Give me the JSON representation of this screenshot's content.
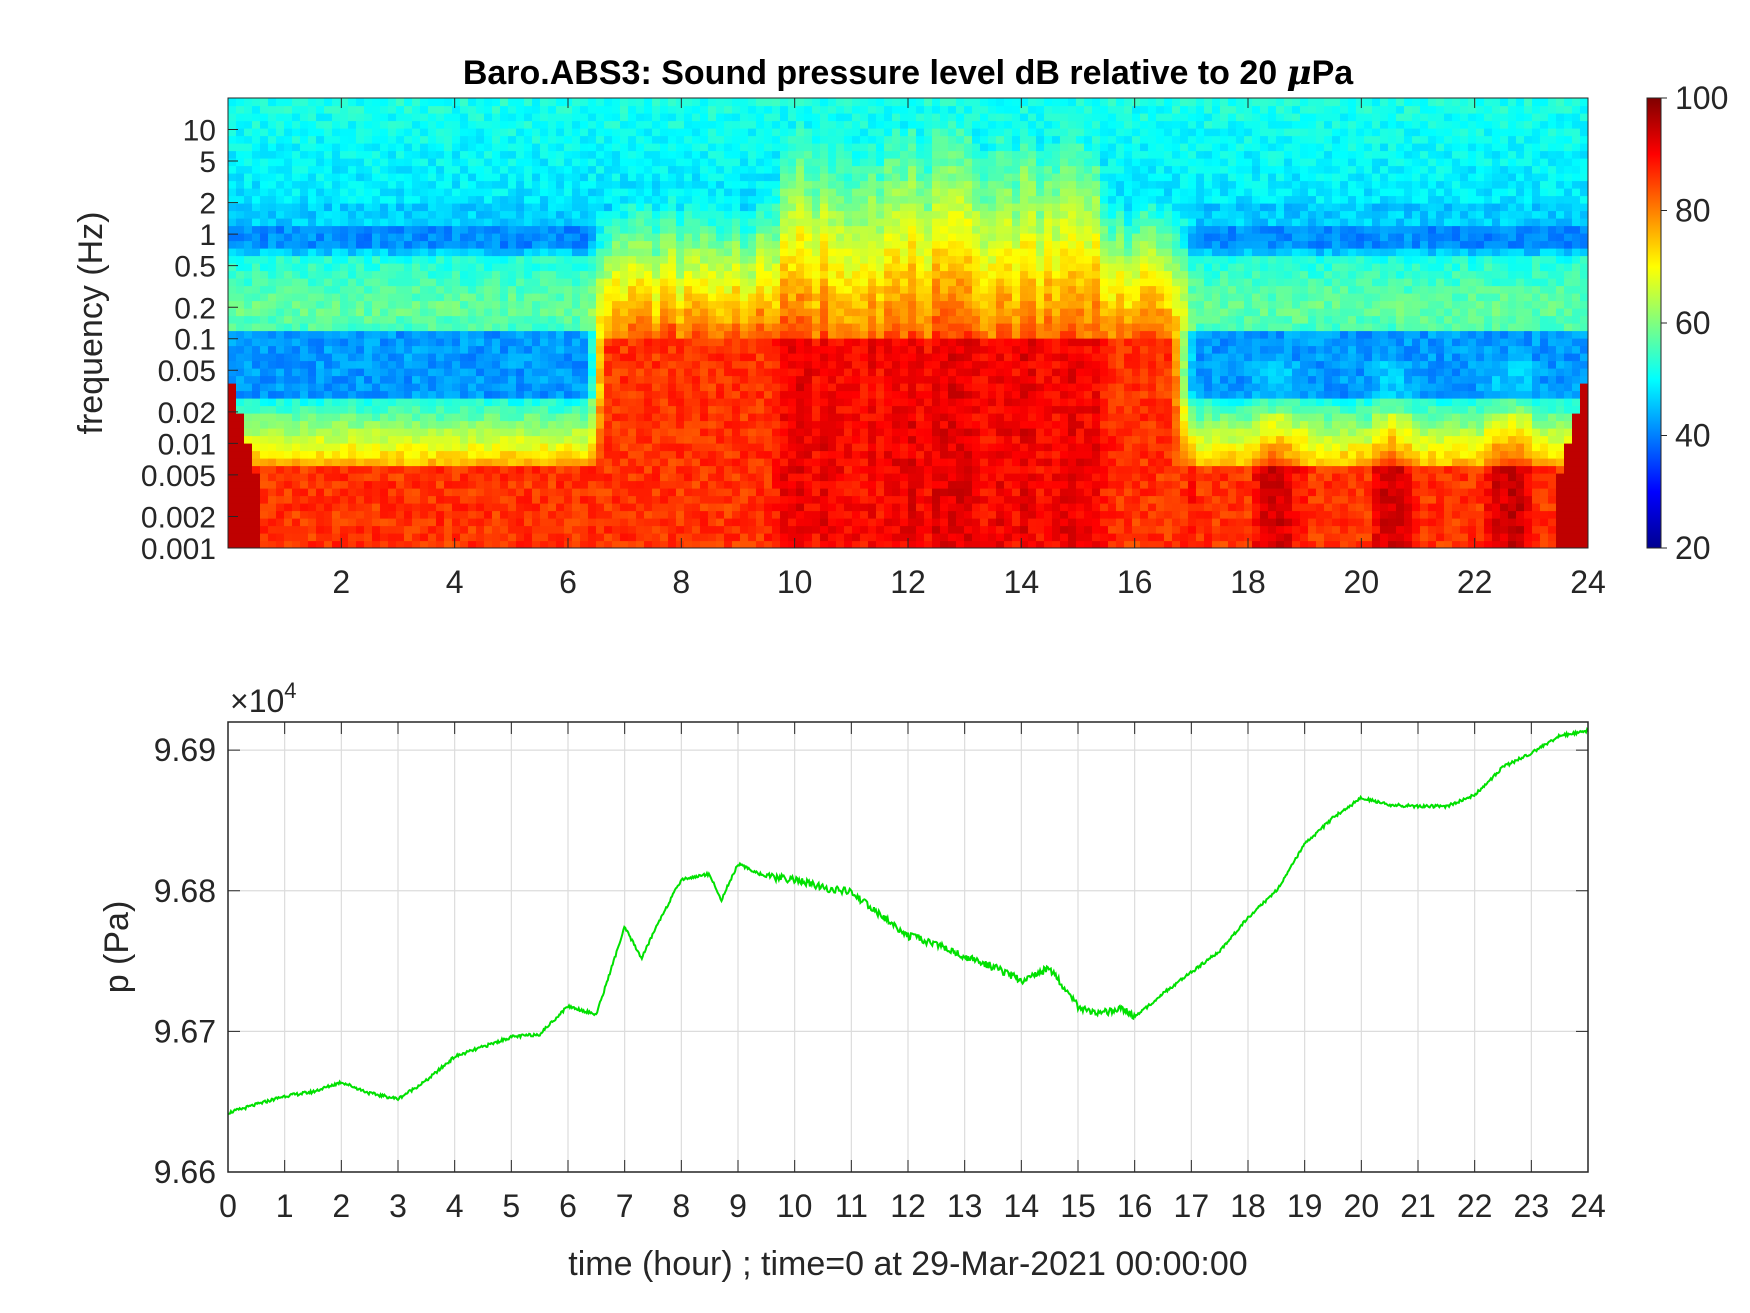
{
  "figure": {
    "title_prefix": "Baro.ABS3: Sound pressure level dB relative to 20 ",
    "title_mu": "μ",
    "title_suffix": "Pa"
  },
  "chart_data": [
    {
      "type": "heatmap",
      "title": "Baro.ABS3: Sound pressure level dB relative to 20 μPa",
      "ylabel": "frequency (Hz)",
      "y_scale": "log",
      "xlim": [
        0,
        24
      ],
      "ylim": [
        0.001,
        20
      ],
      "x_ticks": [
        2,
        4,
        6,
        8,
        10,
        12,
        14,
        16,
        18,
        20,
        22,
        24
      ],
      "x_tick_labels": [
        "2",
        "4",
        "6",
        "8",
        "10",
        "12",
        "14",
        "16",
        "18",
        "20",
        "22",
        "24"
      ],
      "y_ticks": [
        0.001,
        0.002,
        0.005,
        0.01,
        0.02,
        0.05,
        0.1,
        0.2,
        0.5,
        1,
        2,
        5,
        10
      ],
      "y_tick_labels": [
        "0.001",
        "0.002",
        "0.005",
        "0.01",
        "0.02",
        "0.05",
        "0.1",
        "0.2",
        "0.5",
        "1",
        "2",
        "5",
        "10"
      ],
      "colormap": "jet",
      "colorbar": {
        "range": [
          20,
          100
        ],
        "ticks": [
          20,
          40,
          60,
          80,
          100
        ],
        "tick_labels": [
          "20",
          "40",
          "60",
          "80",
          "100"
        ]
      },
      "active_period_hours": [
        6.3,
        17.0
      ],
      "peak_activity_hours": [
        9.8,
        15.8
      ],
      "approx_level_db": {
        "quiet_high_freq_above_2Hz": 48,
        "quiet_band_0.03_to_0.1Hz": 42,
        "quiet_band_0.15_to_0.3Hz": 58,
        "below_0.005Hz": 86,
        "active_band_0.005_to_0.1Hz": 86,
        "active_peak": 95
      }
    },
    {
      "type": "line",
      "xlabel": "time (hour) ; time=0 at 29-Mar-2021 00:00:00",
      "ylabel": "p (Pa)",
      "xlim": [
        0,
        24
      ],
      "ylim": [
        96600,
        96920
      ],
      "y_multiplier_label": "×10",
      "y_multiplier_exponent": "4",
      "grid": true,
      "x_ticks": [
        0,
        1,
        2,
        3,
        4,
        5,
        6,
        7,
        8,
        9,
        10,
        11,
        12,
        13,
        14,
        15,
        16,
        17,
        18,
        19,
        20,
        21,
        22,
        23,
        24
      ],
      "x_tick_labels": [
        "0",
        "1",
        "2",
        "3",
        "4",
        "5",
        "6",
        "7",
        "8",
        "9",
        "10",
        "11",
        "12",
        "13",
        "14",
        "15",
        "16",
        "17",
        "18",
        "19",
        "20",
        "21",
        "22",
        "23",
        "24"
      ],
      "y_ticks": [
        96600,
        96700,
        96800,
        96900
      ],
      "y_tick_labels": [
        "9.66",
        "9.67",
        "9.68",
        "9.69"
      ],
      "series": [
        {
          "color": "#00e000",
          "x": [
            0,
            0.5,
            1,
            1.5,
            2,
            2.5,
            3,
            3.5,
            4,
            4.5,
            5,
            5.5,
            6,
            6.5,
            7,
            7.3,
            7.6,
            8,
            8.5,
            8.7,
            9,
            9.5,
            10,
            10.5,
            11,
            11.5,
            12,
            12.5,
            13,
            13.5,
            14,
            14.5,
            15,
            15.3,
            15.8,
            16,
            16.5,
            17,
            17.5,
            18,
            18.5,
            19,
            19.5,
            20,
            20.5,
            21,
            21.5,
            22,
            22.5,
            23,
            23.5,
            24
          ],
          "y": [
            96642,
            96648,
            96654,
            96657,
            96664,
            96656,
            96652,
            96665,
            96682,
            96689,
            96696,
            96698,
            96718,
            96712,
            96774,
            96752,
            96778,
            96808,
            96812,
            96793,
            96819,
            96810,
            96808,
            96802,
            96799,
            96783,
            96768,
            96762,
            96753,
            96746,
            96736,
            96745,
            96718,
            96712,
            96716,
            96710,
            96727,
            96742,
            96757,
            96781,
            96800,
            96833,
            96852,
            96866,
            96861,
            96860,
            96860,
            96868,
            96888,
            96898,
            96910,
            96914
          ]
        }
      ]
    }
  ]
}
